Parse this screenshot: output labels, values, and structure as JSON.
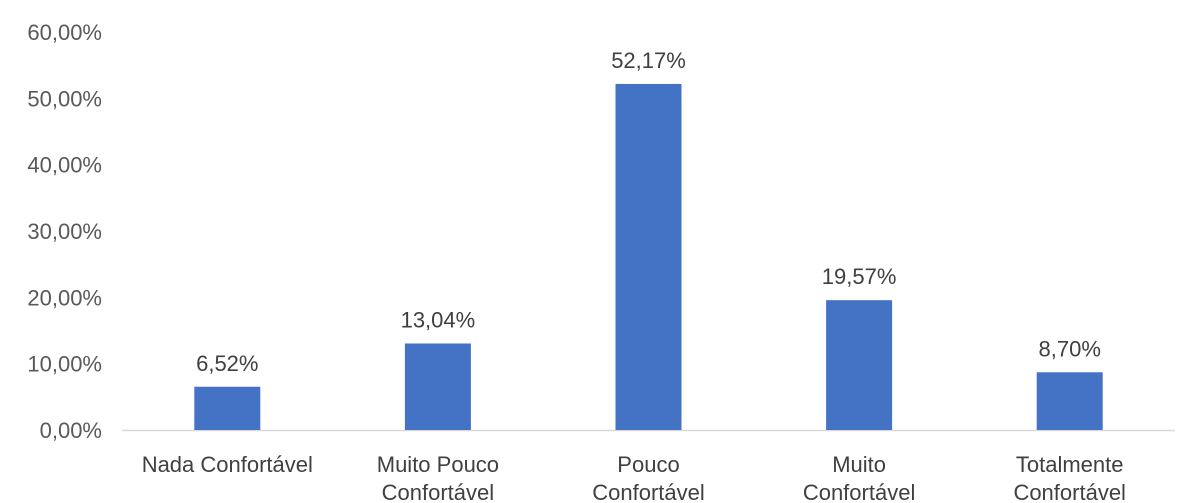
{
  "chart_data": {
    "type": "bar",
    "categories": [
      [
        "Nada Confortável"
      ],
      [
        "Muito Pouco",
        "Confortável"
      ],
      [
        "Pouco",
        "Confortável"
      ],
      [
        "Muito",
        "Confortável"
      ],
      [
        "Totalmente",
        "Confortável"
      ]
    ],
    "values": [
      6.52,
      13.04,
      52.17,
      19.57,
      8.7
    ],
    "value_labels": [
      "6,52%",
      "13,04%",
      "52,17%",
      "19,57%",
      "8,70%"
    ],
    "y_ticks": [
      0,
      10,
      20,
      30,
      40,
      50,
      60
    ],
    "y_tick_labels": [
      "0,00%",
      "10,00%",
      "20,00%",
      "30,00%",
      "40,00%",
      "50,00%",
      "60,00%"
    ],
    "ylim": [
      0,
      60
    ],
    "grid": false,
    "legend": false,
    "colors": {
      "bar": "#4472C4",
      "axis": "#D9D9D9"
    }
  }
}
